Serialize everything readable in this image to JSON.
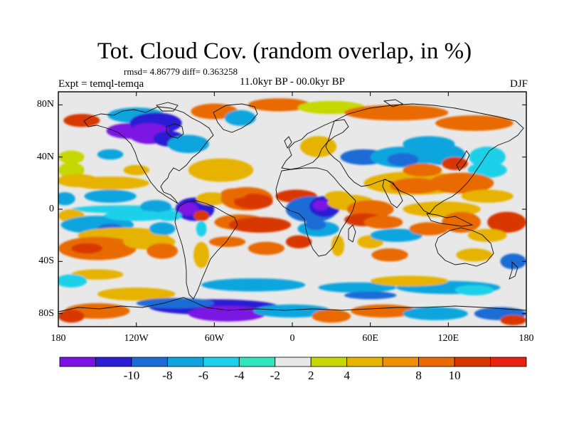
{
  "header": {
    "title": "Tot. Cloud Cov. (random overlap, in %)",
    "stats": "rmsd= 4.86779 diff= 0.363258",
    "experiment": "Expt = temql-temqa",
    "period": "11.0kyr BP - 00.0kyr BP",
    "season": "DJF"
  },
  "map": {
    "projection": "cylindrical equidistant",
    "lon_range": [
      -180,
      180
    ],
    "lat_range": [
      -90,
      90
    ],
    "lat_ticks": [
      {
        "value": 80,
        "label": "80N"
      },
      {
        "value": 40,
        "label": "40N"
      },
      {
        "value": 0,
        "label": "0"
      },
      {
        "value": -40,
        "label": "40S"
      },
      {
        "value": -80,
        "label": "80S"
      }
    ],
    "lon_ticks": [
      {
        "value": -180,
        "label": "180"
      },
      {
        "value": -120,
        "label": "120W"
      },
      {
        "value": -60,
        "label": "60W"
      },
      {
        "value": 0,
        "label": "0"
      },
      {
        "value": 60,
        "label": "60E"
      },
      {
        "value": 120,
        "label": "120E"
      },
      {
        "value": 180,
        "label": "180"
      }
    ],
    "background_color": "#e8e8e8",
    "anomaly_regions": [
      {
        "lon": -162,
        "lat": 68,
        "rx": 14,
        "ry": 5,
        "level": 5
      },
      {
        "lon": -120,
        "lat": 72,
        "rx": 22,
        "ry": 6,
        "level": -3
      },
      {
        "lon": -125,
        "lat": 60,
        "rx": 18,
        "ry": 6,
        "level": -6
      },
      {
        "lon": -105,
        "lat": 66,
        "rx": 20,
        "ry": 8,
        "level": -5
      },
      {
        "lon": -110,
        "lat": 58,
        "rx": 16,
        "ry": 8,
        "level": -6
      },
      {
        "lon": -95,
        "lat": 54,
        "rx": 12,
        "ry": 6,
        "level": -5
      },
      {
        "lon": -80,
        "lat": 50,
        "rx": 16,
        "ry": 7,
        "level": -3
      },
      {
        "lon": -60,
        "lat": 75,
        "rx": 18,
        "ry": 6,
        "level": 4
      },
      {
        "lon": -40,
        "lat": 70,
        "rx": 12,
        "ry": 6,
        "level": -3
      },
      {
        "lon": -10,
        "lat": 80,
        "rx": 24,
        "ry": 5,
        "level": 4
      },
      {
        "lon": 30,
        "lat": 78,
        "rx": 26,
        "ry": 5,
        "level": 1
      },
      {
        "lon": 80,
        "lat": 74,
        "rx": 40,
        "ry": 6,
        "level": 4
      },
      {
        "lon": 140,
        "lat": 66,
        "rx": 30,
        "ry": 6,
        "level": 4
      },
      {
        "lon": -170,
        "lat": 40,
        "rx": 10,
        "ry": 5,
        "level": 1
      },
      {
        "lon": -170,
        "lat": 30,
        "rx": 10,
        "ry": 6,
        "level": 1
      },
      {
        "lon": -140,
        "lat": 42,
        "rx": 10,
        "ry": 4,
        "level": -3
      },
      {
        "lon": -55,
        "lat": 30,
        "rx": 25,
        "ry": 9,
        "level": 2
      },
      {
        "lon": 20,
        "lat": 48,
        "rx": 14,
        "ry": 8,
        "level": 2
      },
      {
        "lon": 55,
        "lat": 40,
        "rx": 18,
        "ry": 6,
        "level": -4
      },
      {
        "lon": 85,
        "lat": 40,
        "rx": 25,
        "ry": 8,
        "level": -3
      },
      {
        "lon": 85,
        "lat": 38,
        "rx": 12,
        "ry": 5,
        "level": -4
      },
      {
        "lon": 115,
        "lat": 42,
        "rx": 18,
        "ry": 8,
        "level": -3
      },
      {
        "lon": 105,
        "lat": 50,
        "rx": 20,
        "ry": 6,
        "level": -3
      },
      {
        "lon": 150,
        "lat": 40,
        "rx": 14,
        "ry": 8,
        "level": -2
      },
      {
        "lon": 150,
        "lat": 30,
        "rx": 15,
        "ry": 6,
        "level": -2
      },
      {
        "lon": -165,
        "lat": 22,
        "rx": 16,
        "ry": 5,
        "level": 2
      },
      {
        "lon": -175,
        "lat": 8,
        "rx": 8,
        "ry": 5,
        "level": -3
      },
      {
        "lon": -140,
        "lat": 20,
        "rx": 30,
        "ry": 5,
        "level": 2
      },
      {
        "lon": -120,
        "lat": 30,
        "rx": 10,
        "ry": 4,
        "level": 2
      },
      {
        "lon": -140,
        "lat": 10,
        "rx": 20,
        "ry": 5,
        "level": -3
      },
      {
        "lon": -130,
        "lat": 0,
        "rx": 40,
        "ry": 3,
        "level": -2
      },
      {
        "lon": -105,
        "lat": 2,
        "rx": 12,
        "ry": 5,
        "level": -3
      },
      {
        "lon": -75,
        "lat": 0,
        "rx": 15,
        "ry": 9,
        "level": -5
      },
      {
        "lon": -80,
        "lat": 0,
        "rx": 8,
        "ry": 5,
        "level": -6
      },
      {
        "lon": -95,
        "lat": -5,
        "rx": 10,
        "ry": 4,
        "level": -2
      },
      {
        "lon": -62,
        "lat": 8,
        "rx": 12,
        "ry": 5,
        "level": 2
      },
      {
        "lon": -35,
        "lat": 8,
        "rx": 20,
        "ry": 9,
        "level": 4
      },
      {
        "lon": -30,
        "lat": 6,
        "rx": 15,
        "ry": 6,
        "level": 5
      },
      {
        "lon": 3,
        "lat": 10,
        "rx": 16,
        "ry": 5,
        "level": 5
      },
      {
        "lon": -45,
        "lat": 12,
        "rx": 10,
        "ry": 4,
        "level": 4
      },
      {
        "lon": 15,
        "lat": 0,
        "rx": 20,
        "ry": 10,
        "level": -4
      },
      {
        "lon": 25,
        "lat": 2,
        "rx": 12,
        "ry": 8,
        "level": -5
      },
      {
        "lon": 22,
        "lat": 3,
        "rx": 6,
        "ry": 4,
        "level": -6
      },
      {
        "lon": 45,
        "lat": 5,
        "rx": 18,
        "ry": 6,
        "level": 2
      },
      {
        "lon": 60,
        "lat": 0,
        "rx": 18,
        "ry": 7,
        "level": 4
      },
      {
        "lon": 35,
        "lat": 10,
        "rx": 10,
        "ry": 4,
        "level": 2
      },
      {
        "lon": 95,
        "lat": 20,
        "rx": 40,
        "ry": 9,
        "level": 2
      },
      {
        "lon": 95,
        "lat": 18,
        "rx": 20,
        "ry": 6,
        "level": 4
      },
      {
        "lon": 130,
        "lat": 20,
        "rx": 25,
        "ry": 8,
        "level": 4
      },
      {
        "lon": 150,
        "lat": 10,
        "rx": 20,
        "ry": 5,
        "level": 2
      },
      {
        "lon": 100,
        "lat": 30,
        "rx": 15,
        "ry": 5,
        "level": 4
      },
      {
        "lon": 125,
        "lat": 35,
        "rx": 10,
        "ry": 5,
        "level": 5
      },
      {
        "lon": 115,
        "lat": 0,
        "rx": 30,
        "ry": 6,
        "level": 2
      },
      {
        "lon": -170,
        "lat": -5,
        "rx": 10,
        "ry": 5,
        "level": 2
      },
      {
        "lon": -150,
        "lat": -12,
        "rx": 28,
        "ry": 7,
        "level": -3
      },
      {
        "lon": -140,
        "lat": -15,
        "rx": 10,
        "ry": 4,
        "level": -4
      },
      {
        "lon": -120,
        "lat": -5,
        "rx": 25,
        "ry": 4,
        "level": -2
      },
      {
        "lon": -130,
        "lat": -20,
        "rx": 35,
        "ry": 6,
        "level": 2
      },
      {
        "lon": -100,
        "lat": -15,
        "rx": 10,
        "ry": 5,
        "level": -3
      },
      {
        "lon": -150,
        "lat": -30,
        "rx": 30,
        "ry": 9,
        "level": 4
      },
      {
        "lon": -158,
        "lat": -30,
        "rx": 12,
        "ry": 4,
        "level": 5
      },
      {
        "lon": -110,
        "lat": -25,
        "rx": 20,
        "ry": 6,
        "level": 2
      },
      {
        "lon": -100,
        "lat": -32,
        "rx": 12,
        "ry": 6,
        "level": 4
      },
      {
        "lon": -150,
        "lat": -50,
        "rx": 20,
        "ry": 4,
        "level": 2
      },
      {
        "lon": -70,
        "lat": -35,
        "rx": 6,
        "ry": 10,
        "level": 2
      },
      {
        "lon": -70,
        "lat": -15,
        "rx": 4,
        "ry": 6,
        "level": -2
      },
      {
        "lon": -70,
        "lat": -5,
        "rx": 6,
        "ry": 4,
        "level": 5
      },
      {
        "lon": -40,
        "lat": -10,
        "rx": 20,
        "ry": 6,
        "level": 4
      },
      {
        "lon": -25,
        "lat": -12,
        "rx": 24,
        "ry": 6,
        "level": 5
      },
      {
        "lon": -50,
        "lat": -25,
        "rx": 14,
        "ry": 4,
        "level": 4
      },
      {
        "lon": -20,
        "lat": -30,
        "rx": 14,
        "ry": 5,
        "level": 4
      },
      {
        "lon": 5,
        "lat": -25,
        "rx": 10,
        "ry": 5,
        "level": 5
      },
      {
        "lon": 20,
        "lat": -15,
        "rx": 16,
        "ry": 6,
        "level": -3
      },
      {
        "lon": 18,
        "lat": -12,
        "rx": 8,
        "ry": 4,
        "level": -4
      },
      {
        "lon": 35,
        "lat": -28,
        "rx": 5,
        "ry": 8,
        "level": 2
      },
      {
        "lon": 55,
        "lat": -8,
        "rx": 15,
        "ry": 5,
        "level": 5
      },
      {
        "lon": 70,
        "lat": -10,
        "rx": 15,
        "ry": 5,
        "level": 4
      },
      {
        "lon": 60,
        "lat": -25,
        "rx": 10,
        "ry": 5,
        "level": 2
      },
      {
        "lon": 80,
        "lat": -20,
        "rx": 20,
        "ry": 5,
        "level": -3
      },
      {
        "lon": 75,
        "lat": -35,
        "rx": 14,
        "ry": 5,
        "level": 4
      },
      {
        "lon": 105,
        "lat": -15,
        "rx": 15,
        "ry": 5,
        "level": 4
      },
      {
        "lon": 130,
        "lat": -10,
        "rx": 15,
        "ry": 8,
        "level": 4
      },
      {
        "lon": 165,
        "lat": -10,
        "rx": 15,
        "ry": 8,
        "level": 5
      },
      {
        "lon": 150,
        "lat": -20,
        "rx": 15,
        "ry": 5,
        "level": 2
      },
      {
        "lon": 140,
        "lat": -35,
        "rx": 14,
        "ry": 5,
        "level": 2
      },
      {
        "lon": 170,
        "lat": -40,
        "rx": 10,
        "ry": 6,
        "level": -4
      },
      {
        "lon": -170,
        "lat": -55,
        "rx": 12,
        "ry": 5,
        "level": -2
      },
      {
        "lon": -120,
        "lat": -65,
        "rx": 30,
        "ry": 5,
        "level": 2
      },
      {
        "lon": -30,
        "lat": -58,
        "rx": 40,
        "ry": 5,
        "level": -3
      },
      {
        "lon": 50,
        "lat": -60,
        "rx": 30,
        "ry": 4,
        "level": -3
      },
      {
        "lon": 60,
        "lat": -66,
        "rx": 20,
        "ry": 3,
        "level": -4
      },
      {
        "lon": 120,
        "lat": -60,
        "rx": 40,
        "ry": 5,
        "level": -3
      },
      {
        "lon": 140,
        "lat": -62,
        "rx": 15,
        "ry": 4,
        "level": -2
      },
      {
        "lon": 90,
        "lat": -55,
        "rx": 30,
        "ry": 4,
        "level": 2
      },
      {
        "lon": -60,
        "lat": -75,
        "rx": 50,
        "ry": 6,
        "level": -5
      },
      {
        "lon": -50,
        "lat": -80,
        "rx": 30,
        "ry": 6,
        "level": -6
      },
      {
        "lon": -90,
        "lat": -72,
        "rx": 30,
        "ry": 4,
        "level": -4
      },
      {
        "lon": -150,
        "lat": -78,
        "rx": 25,
        "ry": 6,
        "level": 4
      },
      {
        "lon": -170,
        "lat": -82,
        "rx": 10,
        "ry": 5,
        "level": 5
      },
      {
        "lon": 0,
        "lat": -78,
        "rx": 30,
        "ry": 5,
        "level": -3
      },
      {
        "lon": 30,
        "lat": -82,
        "rx": 15,
        "ry": 5,
        "level": 4
      },
      {
        "lon": 70,
        "lat": -78,
        "rx": 25,
        "ry": 5,
        "level": 4
      },
      {
        "lon": 110,
        "lat": -80,
        "rx": 25,
        "ry": 5,
        "level": -3
      },
      {
        "lon": 160,
        "lat": -80,
        "rx": 20,
        "ry": 5,
        "level": -4
      },
      {
        "lon": 170,
        "lat": -85,
        "rx": 10,
        "ry": 4,
        "level": 5
      }
    ]
  },
  "colorbar": {
    "colors": [
      "#7b12e3",
      "#2b1ed4",
      "#1b6cd6",
      "#0ea5de",
      "#1ed0ea",
      "#2ee6bf",
      "#e8e8e8",
      "#c6d800",
      "#e6b300",
      "#f09000",
      "#e86a00",
      "#d83800",
      "#e82010"
    ],
    "labels": [
      {
        "value": -10,
        "label": "-10"
      },
      {
        "value": -8,
        "label": "-8"
      },
      {
        "value": -6,
        "label": "-6"
      },
      {
        "value": -4,
        "label": "-4"
      },
      {
        "value": -2,
        "label": "-2"
      },
      {
        "value": 2,
        "label": "2"
      },
      {
        "value": 4,
        "label": "4"
      },
      {
        "value": 8,
        "label": "8"
      },
      {
        "value": 10,
        "label": "10"
      }
    ]
  }
}
